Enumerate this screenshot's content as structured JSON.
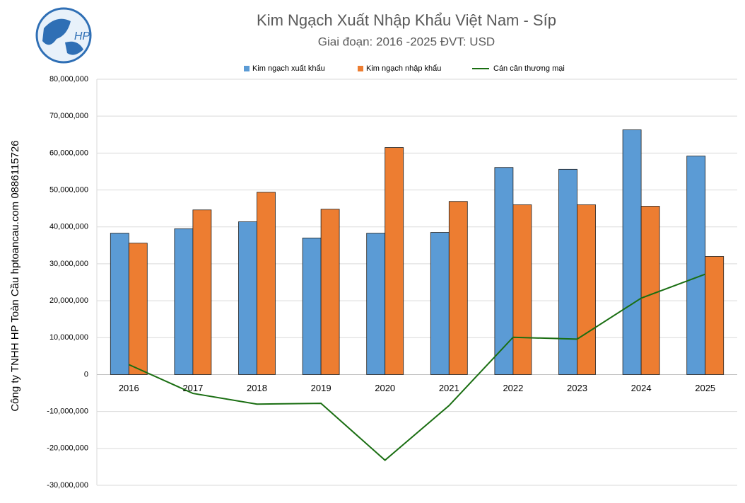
{
  "chart_data": {
    "type": "bar-line",
    "title": "Kim Ngạch Xuất Nhập Khẩu Việt Nam - Síp",
    "subtitle": "Giai đoạn: 2016 -2025  ĐVT: USD",
    "side_note": "Công ty TNHH HP Toàn Cầu hptoancau.com 0886115726",
    "logo_text": "HP",
    "categories": [
      "2016",
      "2017",
      "2018",
      "2019",
      "2020",
      "2021",
      "2022",
      "2023",
      "2024",
      "2025"
    ],
    "series": [
      {
        "name": "Kim ngạch xuất khẩu",
        "type": "bar",
        "color": "#5b9bd5",
        "values": [
          38300000,
          39500000,
          41400000,
          37000000,
          38300000,
          38500000,
          56100000,
          55600000,
          66300000,
          59200000
        ]
      },
      {
        "name": "Kim ngạch nhập khẩu",
        "type": "bar",
        "color": "#ed7d31",
        "values": [
          35600000,
          44600000,
          49400000,
          44800000,
          61500000,
          46900000,
          46000000,
          46000000,
          45600000,
          32000000
        ]
      },
      {
        "name": "Cán cân thương mại",
        "type": "line",
        "color": "#1a6e12",
        "values": [
          2700000,
          -5100000,
          -8000000,
          -7800000,
          -23200000,
          -8400000,
          10100000,
          9600000,
          20700000,
          27200000
        ]
      }
    ],
    "ylim": [
      -30000000,
      80000000
    ],
    "yticks": [
      {
        "value": -30000000,
        "label": "-30,000,000"
      },
      {
        "value": -20000000,
        "label": "-20,000,000"
      },
      {
        "value": -10000000,
        "label": "-10,000,000"
      },
      0,
      {
        "value": 10000000,
        "label": "10,000,000"
      },
      {
        "value": 20000000,
        "label": "20,000,000"
      },
      {
        "value": 30000000,
        "label": "30,000,000"
      },
      {
        "value": 40000000,
        "label": "40,000,000"
      },
      {
        "value": 50000000,
        "label": "50,000,000"
      },
      {
        "value": 60000000,
        "label": "60,000,000"
      },
      {
        "value": 70000000,
        "label": "70,000,000"
      },
      {
        "value": 80000000,
        "label": "80,000,000"
      }
    ],
    "grid": true,
    "legend": "top"
  }
}
